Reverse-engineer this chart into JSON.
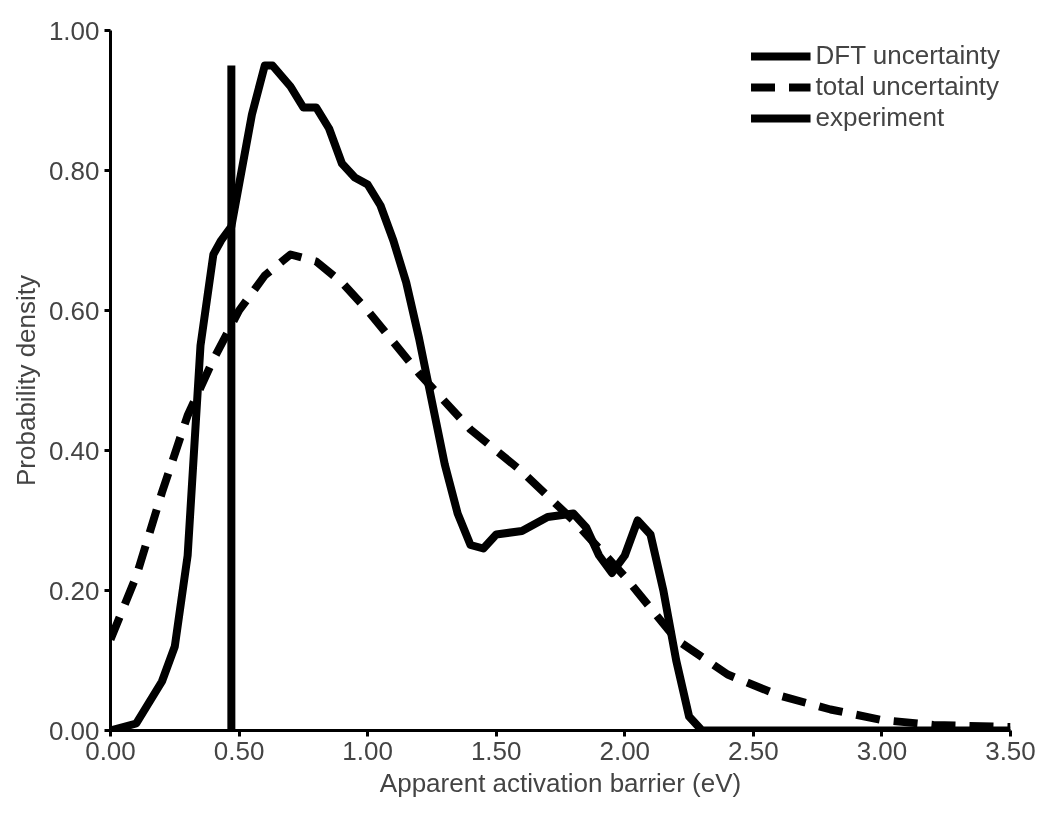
{
  "chart_data": {
    "type": "line",
    "xlabel": "Apparent activation barrier (eV)",
    "ylabel": "Probability density",
    "xlim": [
      0,
      3.5
    ],
    "ylim": [
      0,
      1
    ],
    "xticks": [
      {
        "value": 0,
        "label": "0.00"
      },
      {
        "value": 0.5,
        "label": "0.50"
      },
      {
        "value": 1,
        "label": "1.00"
      },
      {
        "value": 1.5,
        "label": "1.50"
      },
      {
        "value": 2,
        "label": "2.00"
      },
      {
        "value": 2.5,
        "label": "2.50"
      },
      {
        "value": 3,
        "label": "3.00"
      },
      {
        "value": 3.5,
        "label": "3.50"
      }
    ],
    "yticks": [
      {
        "value": 0,
        "label": "0.00"
      },
      {
        "value": 0.2,
        "label": "0.20"
      },
      {
        "value": 0.4,
        "label": "0.40"
      },
      {
        "value": 0.6,
        "label": "0.60"
      },
      {
        "value": 0.8,
        "label": "0.80"
      },
      {
        "value": 1,
        "label": "1.00"
      }
    ],
    "grid": false,
    "legend": "top right",
    "series": [
      {
        "name": "DFT uncertainty",
        "color": "#000000",
        "line_style": "solid",
        "x": [
          0,
          0.1,
          0.2,
          0.25,
          0.3,
          0.35,
          0.4,
          0.43,
          0.47,
          0.55,
          0.6,
          0.63,
          0.7,
          0.75,
          0.8,
          0.85,
          0.9,
          0.95,
          1.0,
          1.05,
          1.1,
          1.15,
          1.2,
          1.25,
          1.3,
          1.35,
          1.4,
          1.45,
          1.5,
          1.6,
          1.7,
          1.8,
          1.85,
          1.9,
          1.95,
          2.0,
          2.05,
          2.1,
          2.15,
          2.2,
          2.25,
          2.3,
          3.5
        ],
        "values": [
          0,
          0.01,
          0.07,
          0.12,
          0.25,
          0.55,
          0.68,
          0.7,
          0.72,
          0.88,
          0.95,
          0.95,
          0.92,
          0.89,
          0.89,
          0.86,
          0.81,
          0.79,
          0.78,
          0.75,
          0.7,
          0.64,
          0.56,
          0.47,
          0.38,
          0.31,
          0.265,
          0.26,
          0.28,
          0.285,
          0.305,
          0.31,
          0.29,
          0.25,
          0.225,
          0.25,
          0.3,
          0.28,
          0.2,
          0.1,
          0.02,
          0,
          0
        ]
      },
      {
        "name": "total uncertainty",
        "color": "#000000",
        "line_style": "dashed",
        "x": [
          0,
          0.1,
          0.2,
          0.3,
          0.4,
          0.5,
          0.6,
          0.7,
          0.8,
          0.9,
          1.0,
          1.2,
          1.4,
          1.6,
          1.8,
          2.0,
          2.2,
          2.4,
          2.6,
          2.8,
          3.0,
          3.2,
          3.5
        ],
        "values": [
          0.13,
          0.22,
          0.34,
          0.45,
          0.53,
          0.6,
          0.65,
          0.68,
          0.67,
          0.64,
          0.6,
          0.51,
          0.43,
          0.37,
          0.3,
          0.22,
          0.13,
          0.08,
          0.05,
          0.03,
          0.015,
          0.008,
          0.005
        ]
      },
      {
        "name": "experiment",
        "color": "#000000",
        "line_style": "solid",
        "x": [
          0.47,
          0.47
        ],
        "values": [
          0,
          0.95
        ]
      }
    ]
  }
}
